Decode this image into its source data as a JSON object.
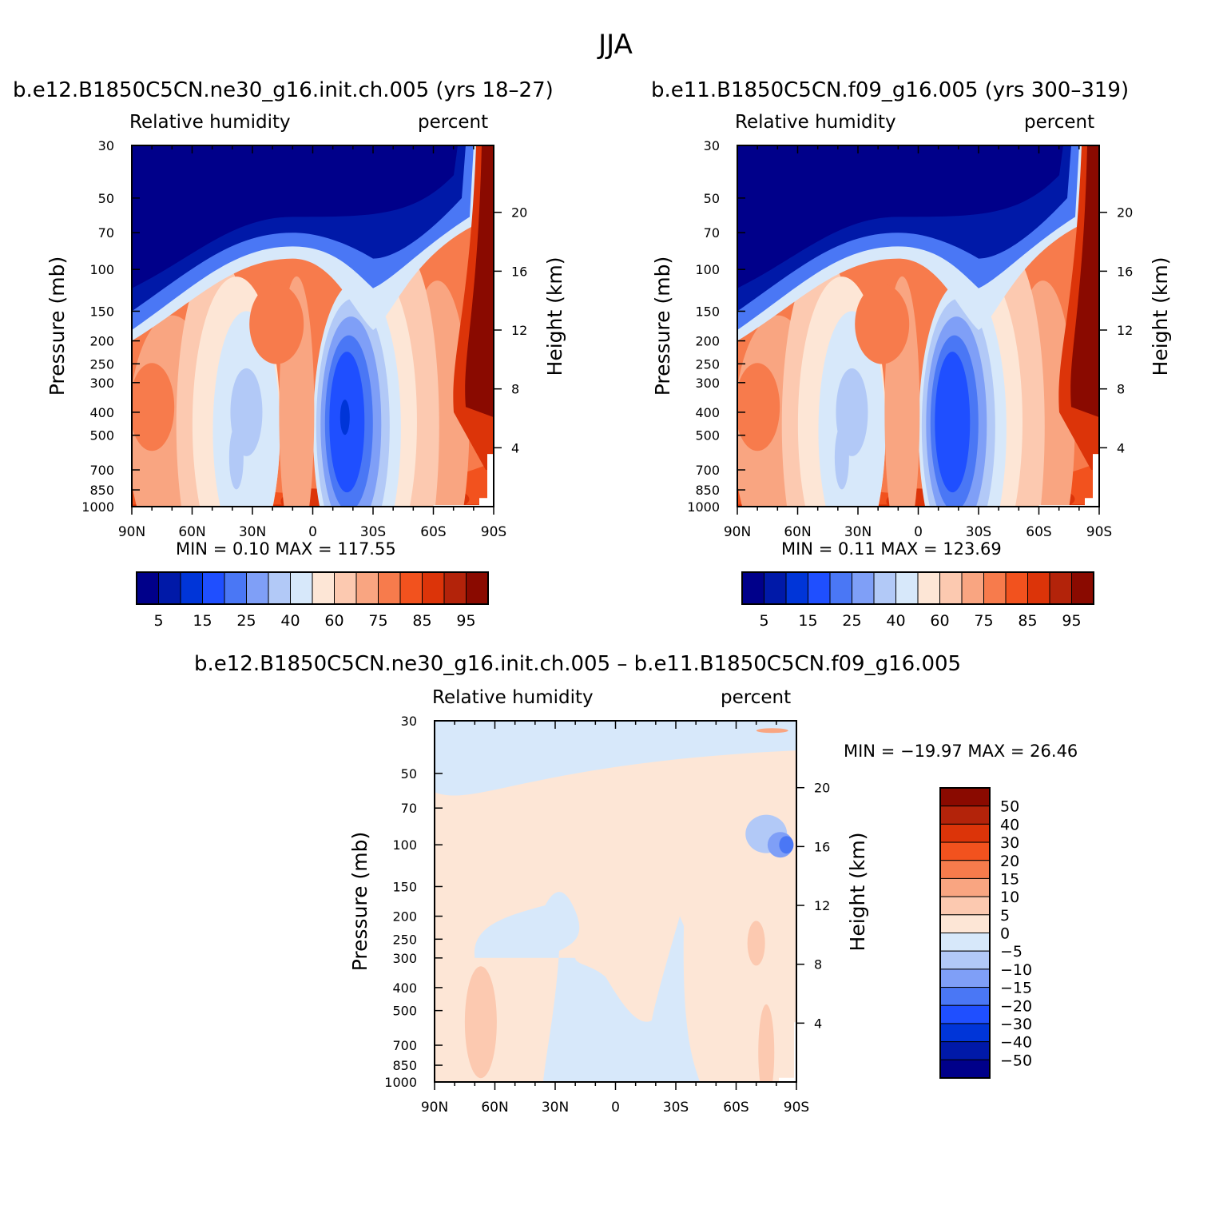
{
  "figure": {
    "title": "JJA"
  },
  "chart_data": [
    {
      "type": "heatmap",
      "title": "b.e12.B1850C5CN.ne30_g16.init.ch.005 (yrs 18–27)",
      "left_title": "Relative humidity",
      "right_title": "percent",
      "ylabel": "Pressure (mb)",
      "ylabel_right": "Height (km)",
      "x_ticks": [
        "90N",
        "60N",
        "30N",
        "0",
        "30S",
        "60S",
        "90S"
      ],
      "y_ticks": [
        30,
        50,
        70,
        100,
        150,
        200,
        250,
        300,
        400,
        500,
        700,
        850,
        1000
      ],
      "y_ticks_right": [
        20,
        16,
        12,
        8,
        4
      ],
      "ylim": [
        1000,
        30
      ],
      "log_scale_y": true,
      "min_max_text": "MIN =    0.10   MAX =  117.55",
      "min": 0.1,
      "max": 117.55,
      "colorbar_levels": [
        5,
        10,
        15,
        20,
        25,
        30,
        40,
        50,
        60,
        70,
        75,
        80,
        85,
        90,
        95
      ],
      "colorbar_labels": [
        "5",
        "15",
        "25",
        "40",
        "60",
        "75",
        "85",
        "95"
      ],
      "colorbar_colors": [
        "#00008a",
        "#0019a8",
        "#0035d8",
        "#1f4fff",
        "#4a77f5",
        "#7f9ff7",
        "#b2c9f7",
        "#d7e8fa",
        "#fde6d6",
        "#fcc9b0",
        "#f9a581",
        "#f77b4c",
        "#f2521e",
        "#dc3409",
        "#b3230a",
        "#8a0a00"
      ],
      "fields": {
        "high_troposphere_dry": "dark blue above ~200 mb, sloping down toward 90N",
        "polar_90S": "dark red column at 90S up to ~20 km",
        "subtropic_min_north": "40-50 percent band near 30N",
        "subtropic_min_south": "15-25 percent core near 15-20S"
      }
    },
    {
      "type": "heatmap",
      "title": "b.e11.B1850C5CN.f09_g16.005 (yrs 300–319)",
      "left_title": "Relative humidity",
      "right_title": "percent",
      "ylabel": "Pressure (mb)",
      "ylabel_right": "Height (km)",
      "x_ticks": [
        "90N",
        "60N",
        "30N",
        "0",
        "30S",
        "60S",
        "90S"
      ],
      "y_ticks": [
        30,
        50,
        70,
        100,
        150,
        200,
        250,
        300,
        400,
        500,
        700,
        850,
        1000
      ],
      "y_ticks_right": [
        20,
        16,
        12,
        8,
        4
      ],
      "ylim": [
        1000,
        30
      ],
      "log_scale_y": true,
      "min_max_text": "MIN =    0.11   MAX =  123.69",
      "min": 0.11,
      "max": 123.69,
      "colorbar_levels": [
        5,
        10,
        15,
        20,
        25,
        30,
        40,
        50,
        60,
        70,
        75,
        80,
        85,
        90,
        95
      ],
      "colorbar_labels": [
        "5",
        "15",
        "25",
        "40",
        "60",
        "75",
        "85",
        "95"
      ],
      "colorbar_colors": [
        "#00008a",
        "#0019a8",
        "#0035d8",
        "#1f4fff",
        "#4a77f5",
        "#7f9ff7",
        "#b2c9f7",
        "#d7e8fa",
        "#fde6d6",
        "#fcc9b0",
        "#f9a581",
        "#f77b4c",
        "#f2521e",
        "#dc3409",
        "#b3230a",
        "#8a0a00"
      ]
    },
    {
      "type": "heatmap",
      "title": "b.e12.B1850C5CN.ne30_g16.init.ch.005 – b.e11.B1850C5CN.f09_g16.005",
      "left_title": "Relative humidity",
      "right_title": "percent",
      "ylabel": "Pressure (mb)",
      "ylabel_right": "Height (km)",
      "x_ticks": [
        "90N",
        "60N",
        "30N",
        "0",
        "30S",
        "60S",
        "90S"
      ],
      "y_ticks": [
        30,
        50,
        70,
        100,
        150,
        200,
        250,
        300,
        400,
        500,
        700,
        850,
        1000
      ],
      "y_ticks_right": [
        20,
        16,
        12,
        8,
        4
      ],
      "ylim": [
        1000,
        30
      ],
      "log_scale_y": true,
      "min_max_text": "MIN =  −19.97   MAX =   26.46",
      "min": -19.97,
      "max": 26.46,
      "colorbar_levels": [
        50,
        40,
        30,
        20,
        15,
        10,
        5,
        0,
        -5,
        -10,
        -15,
        -20,
        -30,
        -40,
        -50
      ],
      "colorbar_labels": [
        "50",
        "40",
        "30",
        "20",
        "15",
        "10",
        "5",
        "0",
        "−5",
        "−10",
        "−15",
        "−20",
        "−30",
        "−40",
        "−50"
      ],
      "colorbar_colors": [
        "#8a0a00",
        "#b3230a",
        "#dc3409",
        "#f2521e",
        "#f77b4c",
        "#f9a581",
        "#fcc9b0",
        "#fde6d6",
        "#d7e8fa",
        "#b2c9f7",
        "#7f9ff7",
        "#4a77f5",
        "#1f4fff",
        "#0035d8",
        "#0019a8",
        "#00008a"
      ]
    }
  ]
}
